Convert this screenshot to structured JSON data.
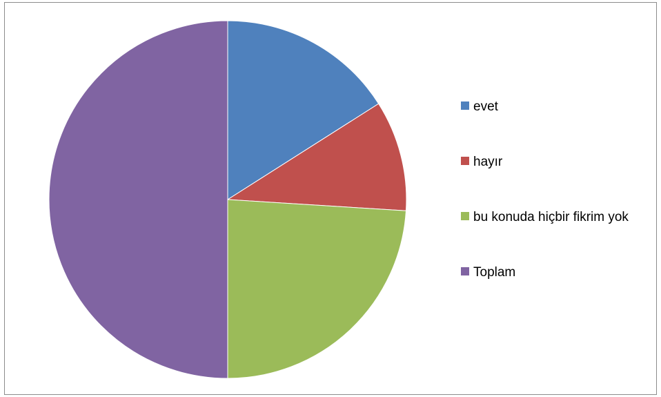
{
  "chart_data": {
    "type": "pie",
    "categories": [
      "evet",
      "hayır",
      "bu konuda hiçbir fikrim yok",
      "Toplam"
    ],
    "values": [
      16,
      10,
      24,
      50
    ],
    "colors": [
      "#4f81bd",
      "#c0504d",
      "#9bbb59",
      "#8064a2"
    ],
    "title": "",
    "legend": "right"
  }
}
